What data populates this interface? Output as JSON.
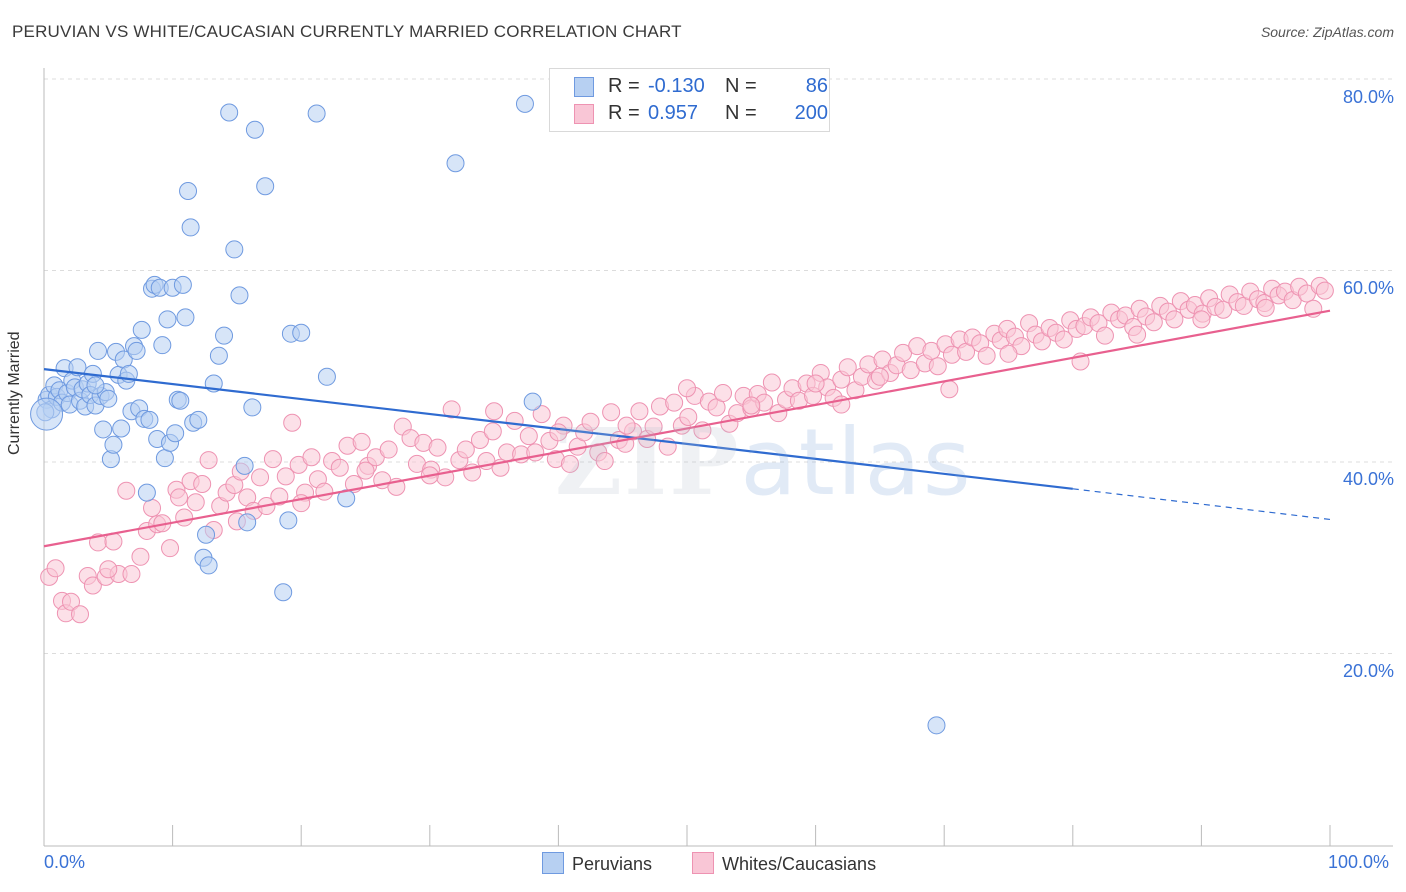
{
  "title": "PERUVIAN VS WHITE/CAUCASIAN CURRENTLY MARRIED CORRELATION CHART",
  "source": "Source: ZipAtlas.com",
  "watermark": {
    "zip": "ZIP",
    "atlas": "atlas"
  },
  "legend": {
    "r_label": "R =",
    "n_label": "N =",
    "rows": [
      {
        "r": "-0.130",
        "n": "86",
        "swatch_fill": "#b7d0f2",
        "swatch_border": "#6f9ae0"
      },
      {
        "r": "0.957",
        "n": "200",
        "swatch_fill": "#f9c6d6",
        "swatch_border": "#ee93b2"
      }
    ]
  },
  "bottom_legend": [
    {
      "label": "Peruvians",
      "fill": "#b7d0f2",
      "border": "#6f9ae0"
    },
    {
      "label": "Whites/Caucasians",
      "fill": "#f9c6d6",
      "border": "#ee93b2"
    }
  ],
  "x_tick_labels": {
    "left": "0.0%",
    "right": "100.0%"
  },
  "y_tick_labels": [
    "80.0%",
    "60.0%",
    "40.0%",
    "20.0%"
  ],
  "chart_data": {
    "type": "scatter",
    "title": "PERUVIAN VS WHITE/CAUCASIAN CURRENTLY MARRIED CORRELATION CHART",
    "xlabel": "",
    "ylabel": "Currently Married",
    "xlim": [
      0,
      100
    ],
    "ylim": [
      0,
      82
    ],
    "y_gridlines": [
      20,
      40,
      60,
      80
    ],
    "colors": {
      "peruvians": "#6f9ae0",
      "whites": "#ee93b2",
      "peru_line": "#2f6bd0",
      "white_line": "#e8608f"
    },
    "series": [
      {
        "name": "Peruvians",
        "trend": {
          "x0": 0,
          "y0": 49.7,
          "x1": 80,
          "y1": 37.2,
          "dashed_to_x": 100,
          "dashed_to_y": 34.0
        },
        "points": [
          [
            0.2,
            46.5
          ],
          [
            0.4,
            47
          ],
          [
            0.6,
            45.5
          ],
          [
            0.8,
            48
          ],
          [
            1.0,
            46.8
          ],
          [
            1.2,
            47.5
          ],
          [
            1.4,
            46.2
          ],
          [
            1.6,
            49.8
          ],
          [
            1.8,
            47.2
          ],
          [
            2.0,
            46.0
          ],
          [
            2.2,
            48.5
          ],
          [
            2.4,
            47.8
          ],
          [
            2.6,
            49.9
          ],
          [
            2.8,
            46.4
          ],
          [
            3.0,
            47.6
          ],
          [
            3.2,
            45.8
          ],
          [
            3.4,
            48.2
          ],
          [
            3.6,
            47.0
          ],
          [
            3.8,
            49.2
          ],
          [
            4.0,
            45.9
          ],
          [
            4.2,
            51.6
          ],
          [
            4.4,
            46.9
          ],
          [
            4.6,
            43.4
          ],
          [
            4.8,
            47.3
          ],
          [
            5.0,
            46.6
          ],
          [
            5.2,
            40.3
          ],
          [
            5.4,
            41.8
          ],
          [
            5.6,
            51.5
          ],
          [
            5.8,
            49.1
          ],
          [
            6.0,
            43.5
          ],
          [
            6.2,
            50.7
          ],
          [
            6.4,
            48.5
          ],
          [
            6.6,
            49.2
          ],
          [
            6.8,
            45.3
          ],
          [
            7.0,
            52.1
          ],
          [
            7.2,
            51.6
          ],
          [
            7.4,
            45.6
          ],
          [
            7.6,
            53.8
          ],
          [
            7.8,
            44.5
          ],
          [
            8.0,
            36.8
          ],
          [
            8.2,
            44.4
          ],
          [
            8.4,
            58.1
          ],
          [
            8.6,
            58.5
          ],
          [
            8.8,
            42.4
          ],
          [
            9.0,
            58.2
          ],
          [
            9.2,
            52.2
          ],
          [
            9.4,
            40.4
          ],
          [
            9.6,
            54.9
          ],
          [
            9.8,
            42.0
          ],
          [
            10.0,
            58.2
          ],
          [
            10.2,
            43.0
          ],
          [
            10.4,
            46.5
          ],
          [
            10.6,
            46.4
          ],
          [
            10.8,
            58.5
          ],
          [
            11.0,
            55.1
          ],
          [
            11.2,
            68.3
          ],
          [
            11.4,
            64.5
          ],
          [
            11.6,
            44.1
          ],
          [
            12.0,
            44.4
          ],
          [
            12.4,
            30.0
          ],
          [
            12.6,
            32.4
          ],
          [
            12.8,
            29.2
          ],
          [
            13.2,
            48.2
          ],
          [
            13.6,
            51.1
          ],
          [
            14.0,
            53.2
          ],
          [
            14.4,
            76.5
          ],
          [
            14.8,
            62.2
          ],
          [
            15.2,
            57.4
          ],
          [
            15.6,
            39.6
          ],
          [
            15.8,
            33.7
          ],
          [
            16.2,
            45.7
          ],
          [
            16.4,
            74.7
          ],
          [
            17.2,
            68.8
          ],
          [
            18.6,
            26.4
          ],
          [
            19.0,
            33.9
          ],
          [
            19.2,
            53.4
          ],
          [
            20.0,
            53.5
          ],
          [
            21.2,
            76.4
          ],
          [
            22.0,
            48.9
          ],
          [
            23.5,
            36.2
          ],
          [
            32.0,
            71.2
          ],
          [
            37.4,
            77.4
          ],
          [
            38.0,
            46.3
          ],
          [
            69.4,
            12.5
          ],
          [
            0.1,
            45.2
          ],
          [
            4.0,
            48.0
          ]
        ]
      },
      {
        "name": "Whites/Caucasians",
        "trend": {
          "x0": 0,
          "y0": 31.2,
          "x1": 100,
          "y1": 55.8
        },
        "points": [
          [
            0.4,
            28.0
          ],
          [
            0.9,
            28.9
          ],
          [
            1.4,
            25.5
          ],
          [
            1.7,
            24.2
          ],
          [
            2.1,
            25.4
          ],
          [
            2.8,
            24.1
          ],
          [
            3.4,
            28.1
          ],
          [
            3.8,
            27.1
          ],
          [
            4.2,
            31.6
          ],
          [
            4.8,
            28.0
          ],
          [
            5.4,
            31.7
          ],
          [
            5.8,
            28.3
          ],
          [
            6.4,
            37.0
          ],
          [
            6.8,
            28.3
          ],
          [
            7.5,
            30.1
          ],
          [
            8.0,
            32.8
          ],
          [
            8.4,
            35.2
          ],
          [
            8.8,
            33.5
          ],
          [
            9.2,
            33.6
          ],
          [
            9.8,
            31.0
          ],
          [
            10.3,
            37.1
          ],
          [
            10.9,
            34.2
          ],
          [
            11.4,
            38.0
          ],
          [
            11.8,
            35.8
          ],
          [
            12.3,
            37.7
          ],
          [
            12.8,
            40.2
          ],
          [
            13.2,
            32.9
          ],
          [
            13.7,
            35.4
          ],
          [
            14.2,
            36.8
          ],
          [
            14.8,
            37.6
          ],
          [
            15.3,
            39.0
          ],
          [
            15.8,
            36.3
          ],
          [
            16.3,
            34.9
          ],
          [
            16.8,
            38.4
          ],
          [
            17.3,
            35.4
          ],
          [
            17.8,
            40.3
          ],
          [
            18.3,
            36.4
          ],
          [
            18.8,
            38.5
          ],
          [
            19.3,
            44.1
          ],
          [
            19.8,
            39.7
          ],
          [
            20.3,
            36.8
          ],
          [
            20.8,
            40.5
          ],
          [
            21.3,
            38.2
          ],
          [
            21.8,
            36.9
          ],
          [
            22.4,
            40.1
          ],
          [
            23.0,
            39.4
          ],
          [
            23.6,
            41.7
          ],
          [
            24.1,
            37.7
          ],
          [
            24.7,
            42.1
          ],
          [
            25.2,
            39.6
          ],
          [
            25.8,
            40.5
          ],
          [
            26.3,
            38.1
          ],
          [
            26.8,
            41.3
          ],
          [
            27.4,
            37.4
          ],
          [
            27.9,
            43.7
          ],
          [
            28.5,
            42.5
          ],
          [
            29.0,
            39.8
          ],
          [
            29.5,
            42.0
          ],
          [
            30.1,
            39.2
          ],
          [
            30.6,
            41.5
          ],
          [
            31.2,
            38.4
          ],
          [
            31.7,
            45.5
          ],
          [
            32.3,
            40.2
          ],
          [
            32.8,
            41.3
          ],
          [
            33.3,
            38.9
          ],
          [
            33.9,
            42.3
          ],
          [
            34.4,
            40.1
          ],
          [
            34.9,
            43.2
          ],
          [
            35.5,
            39.4
          ],
          [
            36.0,
            41.0
          ],
          [
            36.6,
            44.3
          ],
          [
            37.1,
            40.8
          ],
          [
            37.7,
            42.7
          ],
          [
            38.2,
            41.0
          ],
          [
            38.7,
            45.0
          ],
          [
            39.3,
            42.2
          ],
          [
            39.8,
            40.3
          ],
          [
            40.4,
            43.8
          ],
          [
            40.9,
            39.8
          ],
          [
            41.5,
            41.6
          ],
          [
            42.0,
            43.1
          ],
          [
            42.5,
            44.2
          ],
          [
            43.1,
            41.0
          ],
          [
            43.6,
            40.1
          ],
          [
            44.1,
            45.2
          ],
          [
            44.7,
            42.3
          ],
          [
            45.2,
            41.9
          ],
          [
            45.8,
            43.2
          ],
          [
            46.3,
            45.3
          ],
          [
            46.9,
            42.4
          ],
          [
            47.4,
            43.7
          ],
          [
            47.9,
            45.8
          ],
          [
            48.5,
            41.6
          ],
          [
            49.0,
            46.2
          ],
          [
            49.6,
            43.8
          ],
          [
            50.1,
            44.7
          ],
          [
            50.6,
            46.9
          ],
          [
            51.2,
            43.3
          ],
          [
            51.7,
            46.3
          ],
          [
            52.3,
            45.7
          ],
          [
            52.8,
            47.2
          ],
          [
            53.3,
            44.0
          ],
          [
            53.9,
            45.1
          ],
          [
            54.4,
            46.9
          ],
          [
            55.0,
            45.6
          ],
          [
            55.5,
            47.1
          ],
          [
            56.0,
            46.2
          ],
          [
            56.6,
            48.3
          ],
          [
            57.1,
            45.1
          ],
          [
            57.7,
            46.5
          ],
          [
            58.2,
            47.7
          ],
          [
            58.7,
            46.4
          ],
          [
            59.3,
            48.2
          ],
          [
            59.8,
            46.9
          ],
          [
            60.4,
            49.3
          ],
          [
            60.9,
            47.8
          ],
          [
            61.4,
            46.7
          ],
          [
            62.0,
            48.6
          ],
          [
            62.5,
            49.9
          ],
          [
            63.1,
            47.5
          ],
          [
            63.6,
            48.9
          ],
          [
            64.1,
            50.2
          ],
          [
            64.7,
            48.5
          ],
          [
            65.2,
            50.7
          ],
          [
            65.8,
            49.3
          ],
          [
            66.3,
            50.1
          ],
          [
            66.8,
            51.4
          ],
          [
            67.4,
            49.6
          ],
          [
            67.9,
            52.1
          ],
          [
            68.5,
            50.3
          ],
          [
            69.0,
            51.6
          ],
          [
            69.5,
            50.0
          ],
          [
            70.1,
            52.3
          ],
          [
            70.6,
            51.2
          ],
          [
            71.2,
            52.8
          ],
          [
            71.7,
            51.5
          ],
          [
            72.2,
            53.0
          ],
          [
            72.8,
            52.4
          ],
          [
            73.3,
            51.1
          ],
          [
            73.9,
            53.4
          ],
          [
            74.4,
            52.7
          ],
          [
            74.9,
            53.9
          ],
          [
            75.5,
            53.1
          ],
          [
            76.0,
            52.1
          ],
          [
            76.6,
            54.5
          ],
          [
            77.1,
            53.3
          ],
          [
            77.6,
            52.6
          ],
          [
            78.2,
            54.0
          ],
          [
            78.7,
            53.5
          ],
          [
            79.3,
            52.8
          ],
          [
            79.8,
            54.8
          ],
          [
            80.3,
            53.9
          ],
          [
            80.9,
            54.2
          ],
          [
            81.4,
            55.1
          ],
          [
            82.0,
            54.5
          ],
          [
            82.5,
            53.2
          ],
          [
            83.0,
            55.6
          ],
          [
            83.6,
            54.9
          ],
          [
            84.1,
            55.3
          ],
          [
            84.7,
            54.1
          ],
          [
            85.2,
            56.0
          ],
          [
            85.7,
            55.2
          ],
          [
            86.3,
            54.6
          ],
          [
            86.8,
            56.3
          ],
          [
            87.4,
            55.7
          ],
          [
            87.9,
            54.9
          ],
          [
            88.4,
            56.8
          ],
          [
            89.0,
            55.9
          ],
          [
            89.5,
            56.4
          ],
          [
            90.1,
            55.5
          ],
          [
            90.6,
            57.1
          ],
          [
            91.1,
            56.2
          ],
          [
            91.7,
            55.9
          ],
          [
            92.2,
            57.5
          ],
          [
            92.8,
            56.7
          ],
          [
            93.3,
            56.3
          ],
          [
            93.8,
            57.8
          ],
          [
            94.4,
            57.0
          ],
          [
            94.9,
            56.6
          ],
          [
            95.5,
            58.1
          ],
          [
            96.0,
            57.4
          ],
          [
            96.5,
            57.8
          ],
          [
            97.1,
            56.9
          ],
          [
            97.6,
            58.3
          ],
          [
            98.2,
            57.6
          ],
          [
            98.7,
            56.0
          ],
          [
            99.2,
            58.4
          ],
          [
            99.6,
            57.9
          ],
          [
            10.5,
            36.3
          ],
          [
            45.3,
            43.8
          ],
          [
            70.4,
            47.6
          ],
          [
            80.6,
            50.5
          ],
          [
            60.0,
            48.2
          ],
          [
            50.0,
            47.7
          ],
          [
            30.0,
            38.6
          ],
          [
            40.0,
            43.1
          ],
          [
            20.0,
            35.7
          ],
          [
            35.0,
            45.3
          ],
          [
            55.0,
            45.9
          ],
          [
            65.0,
            48.9
          ],
          [
            75.0,
            51.3
          ],
          [
            85.0,
            53.3
          ],
          [
            90.0,
            54.9
          ],
          [
            95.0,
            56.1
          ],
          [
            25.0,
            39.1
          ],
          [
            15.0,
            33.8
          ],
          [
            5.0,
            28.8
          ],
          [
            62.0,
            46.0
          ]
        ]
      }
    ]
  }
}
